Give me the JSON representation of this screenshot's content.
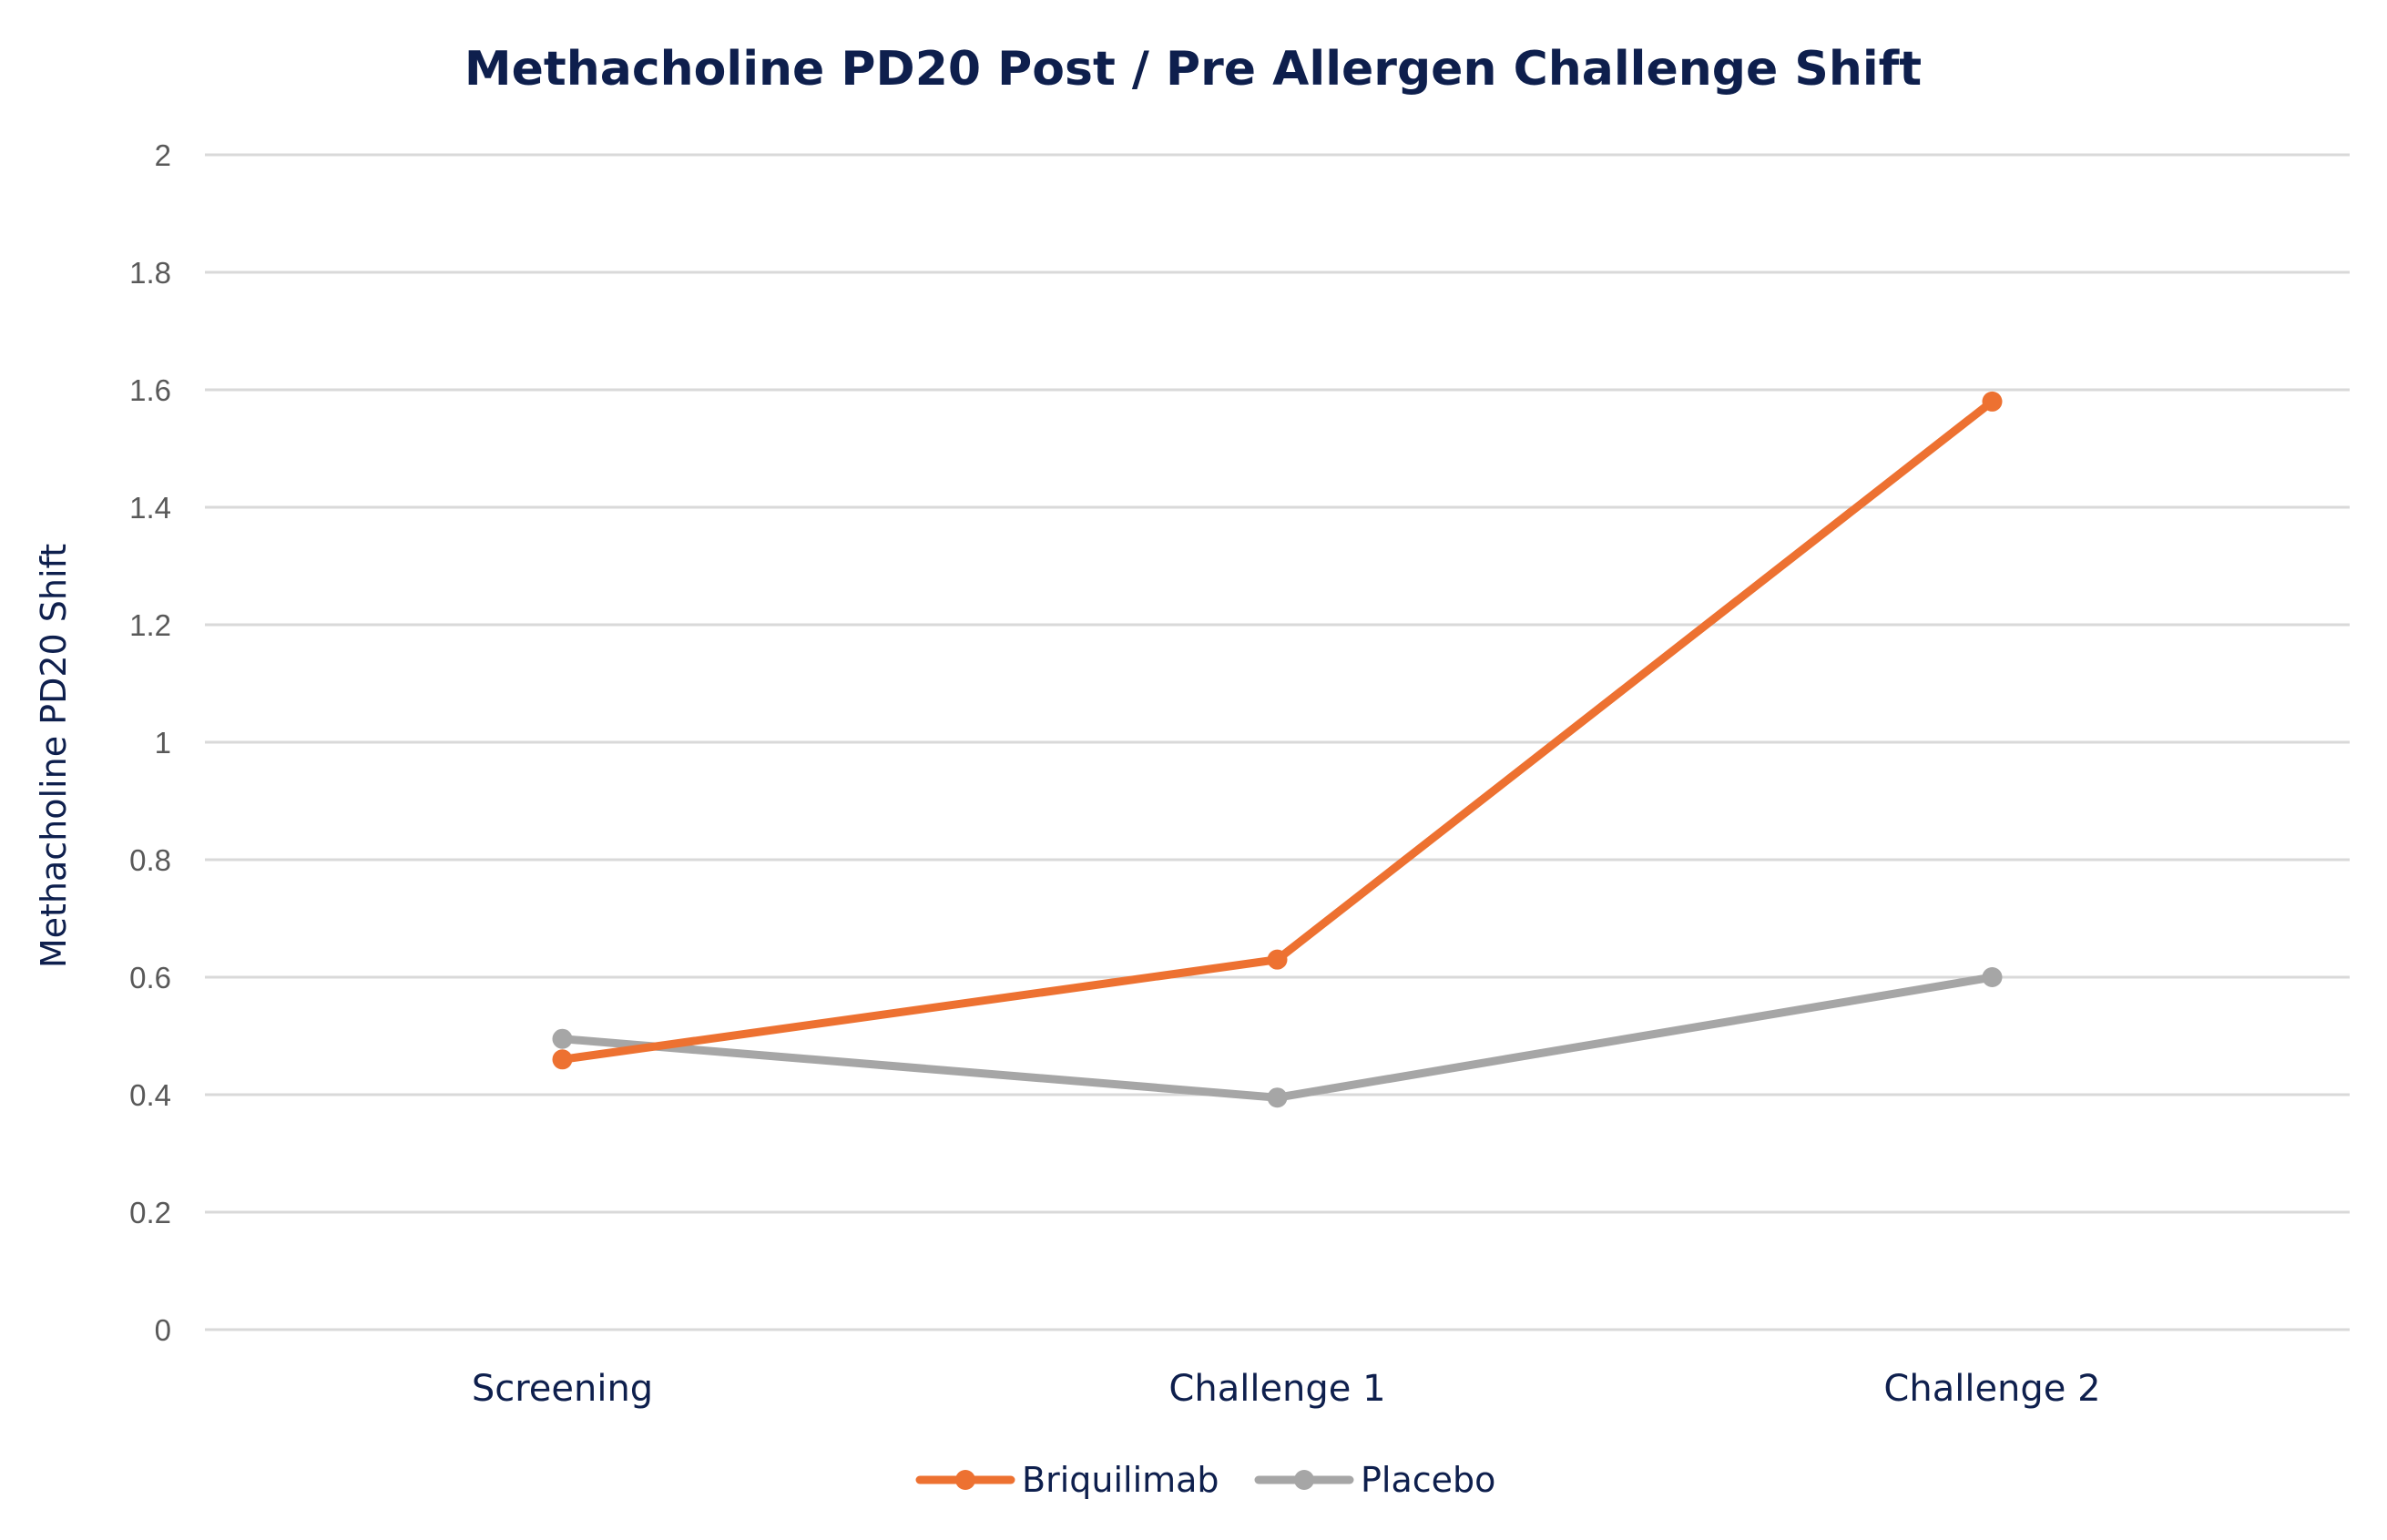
{
  "chart_data": {
    "type": "line",
    "title": "Methacholine PD20 Post / Pre Allergen Challenge Shift",
    "xlabel": "",
    "ylabel": "Methacholine PD20 Shift",
    "categories": [
      "Screening",
      "Challenge 1",
      "Challenge 2"
    ],
    "ylim": [
      0,
      2
    ],
    "yticks": [
      "0",
      "0.2",
      "0.4",
      "0.6",
      "0.8",
      "1",
      "1.2",
      "1.4",
      "1.6",
      "1.8",
      "2"
    ],
    "grid": true,
    "legend_position": "bottom",
    "series": [
      {
        "name": "Briquilimab",
        "color": "#ed7131",
        "values": [
          0.46,
          0.63,
          1.58
        ]
      },
      {
        "name": "Placebo",
        "color": "#a6a6a6",
        "values": [
          0.495,
          0.395,
          0.6
        ]
      }
    ]
  }
}
